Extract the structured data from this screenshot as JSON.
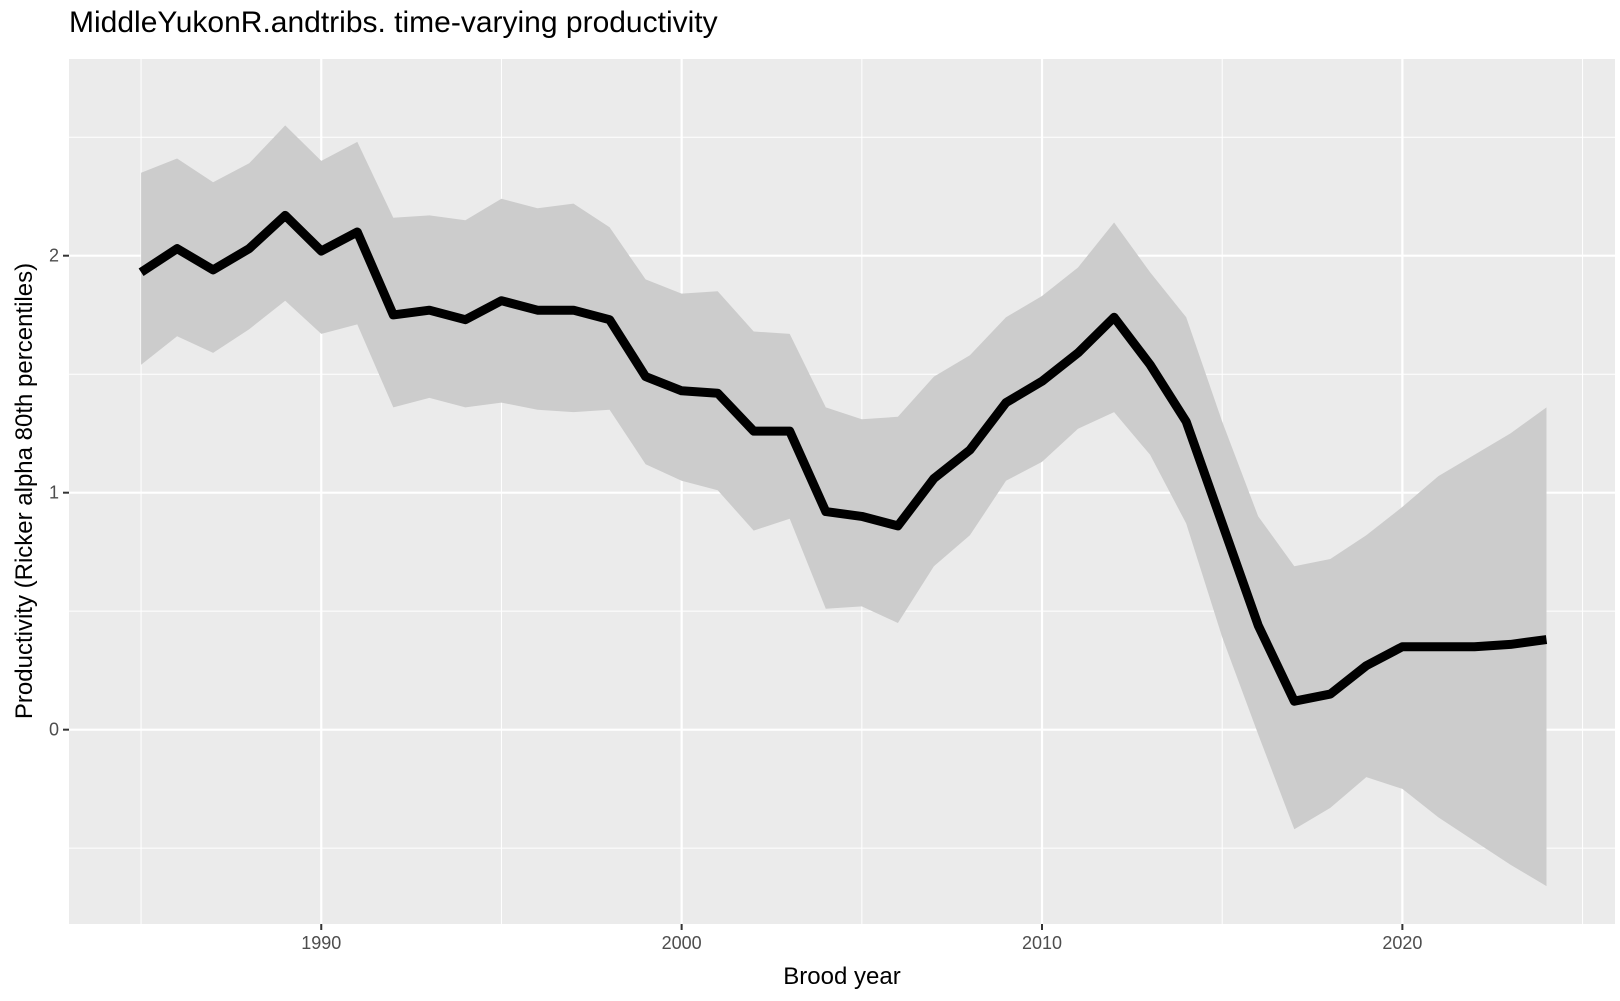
{
  "chart_data": {
    "type": "line",
    "title": "MiddleYukonR.andtribs. time-varying productivity",
    "xlabel": "Brood year",
    "ylabel": "Productivity (Ricker alpha 80th percentiles)",
    "xlim": [
      1983,
      2025.9
    ],
    "ylim": [
      -0.82,
      2.83
    ],
    "x_ticks": [
      1990,
      2000,
      2010,
      2020
    ],
    "y_ticks": [
      0,
      1,
      2
    ],
    "grid": true,
    "colors": {
      "panel_background": "#ebebeb",
      "grid_major": "#ffffff",
      "ribbon": "#cccccc",
      "line": "#000000"
    },
    "series": [
      {
        "x": [
          1985,
          1986,
          1987,
          1988,
          1989,
          1990,
          1991,
          1992,
          1993,
          1994,
          1995,
          1996,
          1997,
          1998,
          1999,
          2000,
          2001,
          2002,
          2003,
          2004,
          2005,
          2006,
          2007,
          2008,
          2009,
          2010,
          2011,
          2012,
          2013,
          2014,
          2015,
          2016,
          2017,
          2018,
          2019,
          2020,
          2021,
          2022,
          2023,
          2024
        ],
        "median": [
          1.93,
          2.03,
          1.94,
          2.03,
          2.17,
          2.02,
          2.1,
          1.75,
          1.77,
          1.73,
          1.81,
          1.77,
          1.77,
          1.73,
          1.49,
          1.43,
          1.42,
          1.26,
          1.26,
          0.92,
          0.9,
          0.86,
          1.06,
          1.18,
          1.38,
          1.47,
          1.59,
          1.74,
          1.54,
          1.3,
          0.87,
          0.44,
          0.12,
          0.15,
          0.27,
          0.35,
          0.35,
          0.35,
          0.36,
          0.38
        ],
        "lower": [
          1.54,
          1.66,
          1.59,
          1.69,
          1.81,
          1.67,
          1.71,
          1.36,
          1.4,
          1.36,
          1.38,
          1.35,
          1.34,
          1.35,
          1.12,
          1.05,
          1.01,
          0.84,
          0.89,
          0.51,
          0.52,
          0.45,
          0.69,
          0.82,
          1.05,
          1.13,
          1.27,
          1.34,
          1.16,
          0.87,
          0.39,
          -0.02,
          -0.42,
          -0.33,
          -0.2,
          -0.25,
          -0.37,
          -0.47,
          -0.57,
          -0.66
        ],
        "upper": [
          2.35,
          2.41,
          2.31,
          2.39,
          2.55,
          2.4,
          2.48,
          2.16,
          2.17,
          2.15,
          2.24,
          2.2,
          2.22,
          2.12,
          1.9,
          1.84,
          1.85,
          1.68,
          1.67,
          1.36,
          1.31,
          1.32,
          1.49,
          1.58,
          1.74,
          1.83,
          1.95,
          2.14,
          1.93,
          1.74,
          1.3,
          0.9,
          0.69,
          0.72,
          0.82,
          0.94,
          1.07,
          1.16,
          1.25,
          1.36
        ]
      }
    ]
  }
}
